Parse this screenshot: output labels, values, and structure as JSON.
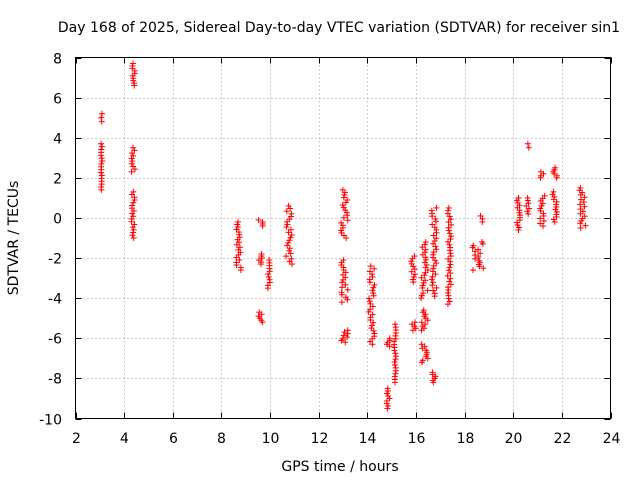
{
  "chart_data": {
    "type": "scatter",
    "title": "Day 168 of 2025, Sidereal Day-to-day VTEC variation (SDTVAR) for receiver sin1",
    "xlabel": "GPS time / hours",
    "ylabel": "SDTVAR / TECUs",
    "xlim": [
      2,
      24
    ],
    "ylim": [
      -10,
      8
    ],
    "xticks": [
      2,
      4,
      6,
      8,
      10,
      12,
      14,
      16,
      18,
      20,
      22,
      24
    ],
    "yticks": [
      -10,
      -8,
      -6,
      -4,
      -2,
      0,
      2,
      4,
      6,
      8
    ],
    "grid": true,
    "marker": "+",
    "color": "#ff0000",
    "series": [
      {
        "name": "SDTVAR",
        "clusters": [
          {
            "x": [
              3.05,
              3.1
            ],
            "y": [
              1.4,
              3.7
            ]
          },
          {
            "x": [
              3.05,
              3.1
            ],
            "y": [
              4.8,
              5.2
            ]
          },
          {
            "x": [
              4.3,
              4.45
            ],
            "y": [
              6.6,
              7.7
            ]
          },
          {
            "x": [
              4.3,
              4.45
            ],
            "y": [
              2.3,
              3.5
            ]
          },
          {
            "x": [
              4.3,
              4.45
            ],
            "y": [
              -1.0,
              1.3
            ]
          },
          {
            "x": [
              8.6,
              8.85
            ],
            "y": [
              -2.6,
              -0.2
            ]
          },
          {
            "x": [
              9.5,
              9.7
            ],
            "y": [
              -0.4,
              -0.1
            ]
          },
          {
            "x": [
              9.5,
              9.7
            ],
            "y": [
              -2.3,
              -1.8
            ]
          },
          {
            "x": [
              9.5,
              9.7
            ],
            "y": [
              -5.2,
              -4.7
            ]
          },
          {
            "x": [
              9.9,
              10.0
            ],
            "y": [
              -3.5,
              -2.1
            ]
          },
          {
            "x": [
              10.65,
              10.9
            ],
            "y": [
              -2.3,
              0.6
            ]
          },
          {
            "x": [
              12.9,
              13.2
            ],
            "y": [
              -1.0,
              1.4
            ]
          },
          {
            "x": [
              12.9,
              13.2
            ],
            "y": [
              -4.2,
              -2.1
            ]
          },
          {
            "x": [
              12.9,
              13.2
            ],
            "y": [
              -6.2,
              -5.6
            ]
          },
          {
            "x": [
              14.05,
              14.3
            ],
            "y": [
              -6.3,
              -2.4
            ]
          },
          {
            "x": [
              14.8,
              14.95
            ],
            "y": [
              -6.4,
              -6.0
            ]
          },
          {
            "x": [
              14.8,
              14.95
            ],
            "y": [
              -9.5,
              -8.5
            ]
          },
          {
            "x": [
              15.1,
              15.2
            ],
            "y": [
              -8.2,
              -5.3
            ]
          },
          {
            "x": [
              15.8,
              16.0
            ],
            "y": [
              -3.2,
              -1.9
            ]
          },
          {
            "x": [
              15.8,
              16.0
            ],
            "y": [
              -5.6,
              -5.2
            ]
          },
          {
            "x": [
              16.2,
              16.5
            ],
            "y": [
              -4.0,
              -1.2
            ]
          },
          {
            "x": [
              16.2,
              16.5
            ],
            "y": [
              -5.6,
              -4.6
            ]
          },
          {
            "x": [
              16.2,
              16.5
            ],
            "y": [
              -7.2,
              -6.3
            ]
          },
          {
            "x": [
              16.65,
              16.85
            ],
            "y": [
              -3.9,
              0.5
            ]
          },
          {
            "x": [
              16.65,
              16.85
            ],
            "y": [
              -8.2,
              -7.7
            ]
          },
          {
            "x": [
              17.3,
              17.45
            ],
            "y": [
              -4.3,
              0.5
            ]
          },
          {
            "x": [
              18.3,
              18.8
            ],
            "y": [
              -2.6,
              -1.2
            ]
          },
          {
            "x": [
              18.65,
              18.75
            ],
            "y": [
              -0.2,
              0.1
            ]
          },
          {
            "x": [
              20.1,
              20.3
            ],
            "y": [
              -0.6,
              1.0
            ]
          },
          {
            "x": [
              20.5,
              20.65
            ],
            "y": [
              0.2,
              1.0
            ]
          },
          {
            "x": [
              20.6,
              20.65
            ],
            "y": [
              3.5,
              3.7
            ]
          },
          {
            "x": [
              21.1,
              21.3
            ],
            "y": [
              -0.4,
              1.1
            ]
          },
          {
            "x": [
              21.1,
              21.3
            ],
            "y": [
              2.0,
              2.3
            ]
          },
          {
            "x": [
              21.6,
              21.8
            ],
            "y": [
              -0.2,
              1.3
            ]
          },
          {
            "x": [
              21.6,
              21.8
            ],
            "y": [
              2.0,
              2.5
            ]
          },
          {
            "x": [
              22.7,
              23.0
            ],
            "y": [
              -0.5,
              1.5
            ]
          }
        ]
      }
    ]
  }
}
